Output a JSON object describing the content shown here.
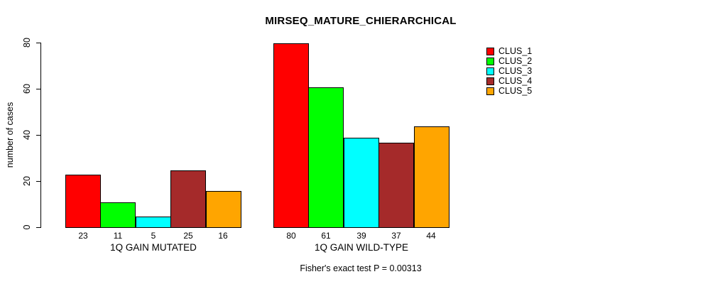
{
  "chart_data": {
    "type": "bar",
    "title": "MIRSEQ_MATURE_CHIERARCHICAL",
    "ylabel": "number of cases",
    "ylim": [
      0,
      80
    ],
    "yticks": [
      0,
      20,
      40,
      60,
      80
    ],
    "grid": false,
    "categories": [
      "1Q GAIN MUTATED",
      "1Q GAIN WILD-TYPE"
    ],
    "series": [
      {
        "name": "CLUS_1",
        "color": "#FF0000",
        "values": [
          23,
          80
        ]
      },
      {
        "name": "CLUS_2",
        "color": "#00FF00",
        "values": [
          11,
          61
        ]
      },
      {
        "name": "CLUS_3",
        "color": "#00FFFF",
        "values": [
          5,
          39
        ]
      },
      {
        "name": "CLUS_4",
        "color": "#A52A2A",
        "values": [
          25,
          37
        ]
      },
      {
        "name": "CLUS_5",
        "color": "#FFA500",
        "values": [
          16,
          44
        ]
      }
    ],
    "bar_value_labels": [
      [
        23,
        11,
        5,
        25,
        16
      ],
      [
        80,
        61,
        39,
        37,
        44
      ]
    ],
    "legend_position": "top-right",
    "annotation": "Fisher's exact test P = 0.00313"
  },
  "colors": {
    "background": "#FFFFFF",
    "text": "#000000",
    "axis": "#000000"
  }
}
